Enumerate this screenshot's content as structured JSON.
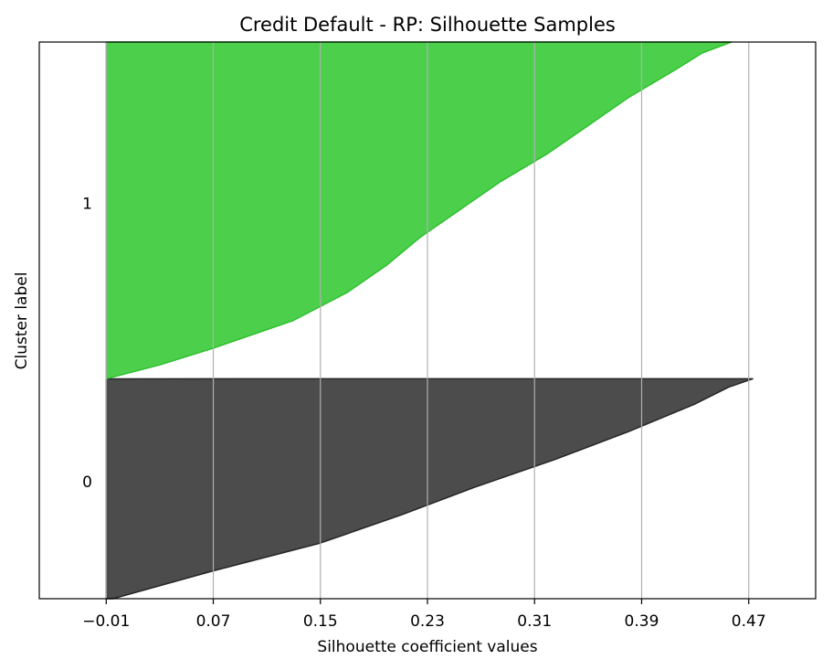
{
  "chart_data": {
    "type": "area",
    "title": "Credit Default - RP: Silhouette Samples",
    "xlabel": "Silhouette coefficient values",
    "ylabel": "Cluster label",
    "xlim": [
      -0.06,
      0.52
    ],
    "xticks": [
      -0.01,
      0.07,
      0.15,
      0.23,
      0.31,
      0.39,
      0.47
    ],
    "xtick_labels": [
      "−0.01",
      "0.07",
      "0.15",
      "0.23",
      "0.31",
      "0.39",
      "0.47"
    ],
    "vertical_grid": true,
    "y_unit_label": "fraction of axis height from bottom",
    "series": [
      {
        "name": "0",
        "color": "#4c4c4c",
        "edge_color": "#262626",
        "y_range": [
          0.0,
          0.395
        ],
        "label_y": 0.21,
        "profile_y": [
          0.0,
          0.05,
          0.1,
          0.15,
          0.2,
          0.25,
          0.3,
          0.35,
          0.38,
          0.395
        ],
        "profile_x": [
          -0.005,
          0.07,
          0.15,
          0.21,
          0.265,
          0.325,
          0.38,
          0.43,
          0.455,
          0.473
        ]
      },
      {
        "name": "1",
        "color": "#4cd04c",
        "edge_color": "#2fbf2f",
        "y_range": [
          0.395,
          1.0
        ],
        "label_y": 0.71,
        "profile_y": [
          0.395,
          0.42,
          0.45,
          0.5,
          0.55,
          0.6,
          0.65,
          0.7,
          0.75,
          0.8,
          0.85,
          0.9,
          0.95,
          0.98,
          1.0
        ],
        "profile_x": [
          -0.01,
          0.03,
          0.07,
          0.13,
          0.17,
          0.2,
          0.225,
          0.255,
          0.285,
          0.32,
          0.35,
          0.38,
          0.415,
          0.435,
          0.457
        ]
      }
    ]
  }
}
